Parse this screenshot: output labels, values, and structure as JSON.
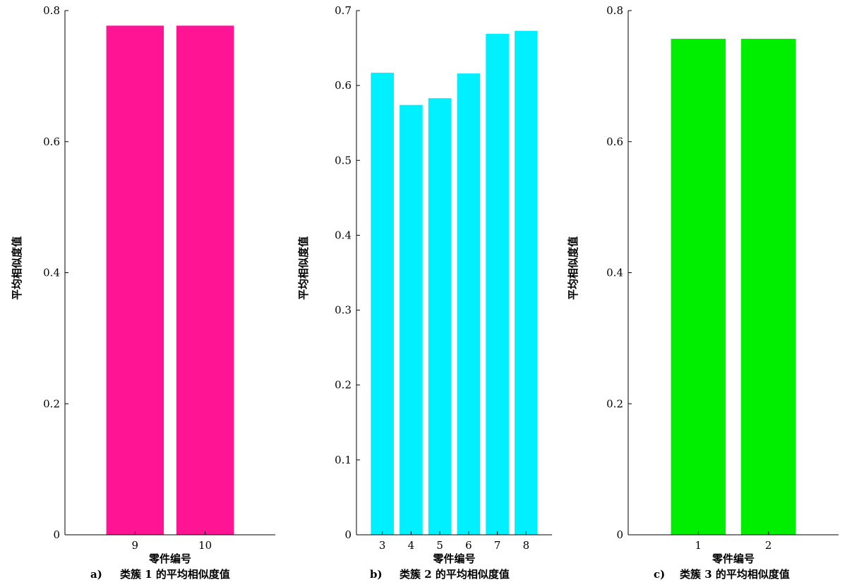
{
  "figure": {
    "panels": [
      {
        "letter": "a)",
        "caption": "类簇 1 的平均相似度值",
        "xlabel": "零件编号",
        "ylabel": "平均相似度值"
      },
      {
        "letter": "b)",
        "caption": "类簇 2 的平均相似度值",
        "xlabel": "零件编号",
        "ylabel": "平均相似度值"
      },
      {
        "letter": "c)",
        "caption": "类簇 3 的平均相似度值",
        "xlabel": "零件编号",
        "ylabel": "平均相似度值"
      }
    ]
  },
  "chart_data": [
    {
      "type": "bar",
      "categories": [
        "9",
        "10"
      ],
      "values": [
        0.777,
        0.777
      ],
      "color": "#ff1493",
      "xlabel": "零件编号",
      "ylabel": "平均相似度值",
      "ylim": [
        0,
        0.8
      ],
      "yticks": [
        0,
        0.2,
        0.4,
        0.6,
        0.8
      ],
      "ytick_labels": [
        "0",
        "0.2",
        "0.4",
        "0.6",
        "0.8"
      ],
      "grid": false
    },
    {
      "type": "bar",
      "categories": [
        "3",
        "4",
        "5",
        "6",
        "7",
        "8"
      ],
      "values": [
        0.617,
        0.574,
        0.583,
        0.616,
        0.669,
        0.673
      ],
      "color": "#00f0ff",
      "xlabel": "零件编号",
      "ylabel": "平均相似度值",
      "ylim": [
        0,
        0.7
      ],
      "yticks": [
        0,
        0.1,
        0.2,
        0.3,
        0.4,
        0.5,
        0.6,
        0.7
      ],
      "ytick_labels": [
        "0",
        "0.1",
        "0.2",
        "0.3",
        "0.4",
        "0.5",
        "0.6",
        "0.7"
      ],
      "grid": false
    },
    {
      "type": "bar",
      "categories": [
        "1",
        "2"
      ],
      "values": [
        0.757,
        0.757
      ],
      "color": "#00ee00",
      "xlabel": "零件编号",
      "ylabel": "平均相似度值",
      "ylim": [
        0,
        0.8
      ],
      "yticks": [
        0,
        0.2,
        0.4,
        0.6,
        0.8
      ],
      "ytick_labels": [
        "0",
        "0.2",
        "0.4",
        "0.6",
        "0.8"
      ],
      "grid": false
    }
  ]
}
